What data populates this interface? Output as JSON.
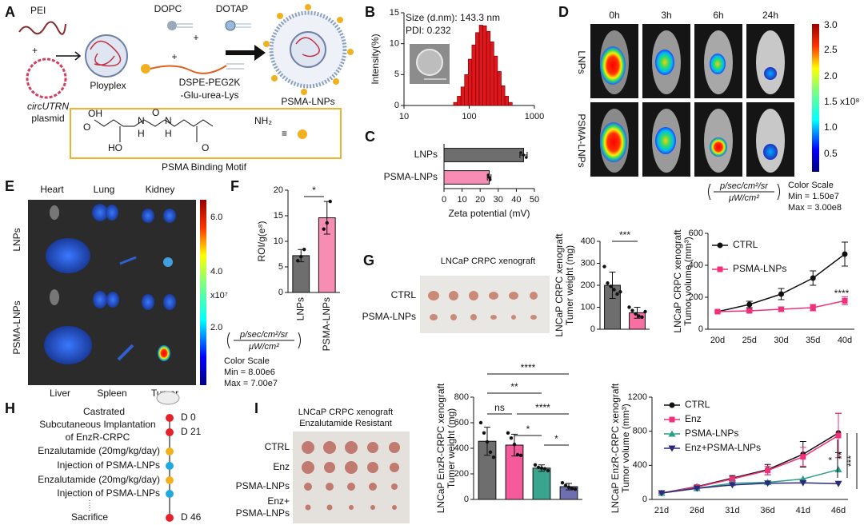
{
  "panel_labels": [
    "A",
    "B",
    "C",
    "D",
    "E",
    "F",
    "G",
    "H",
    "I"
  ],
  "panel_a": {
    "pei": "PEI",
    "plus": "+",
    "plasmid_name": "circUTRN",
    "plasmid": "plasmid",
    "polyplex": "Ployplex",
    "dopc": "DOPC",
    "dotap": "DOTAP",
    "dspe": [
      "DSPE-PEG2K",
      "-Glu-urea-Lys"
    ],
    "product": "PSMA-LNPs",
    "motif": "PSMA Binding Motif",
    "equiv": "≡",
    "atoms": [
      "OH",
      "O",
      "H",
      "H",
      "N",
      "N",
      "O",
      "HO",
      "O",
      "NH₂"
    ]
  },
  "panel_d": {
    "timepoints": [
      "0h",
      "3h",
      "6h",
      "24h"
    ],
    "rows": [
      "LNPs",
      "PSMA-LNPs"
    ],
    "colorbar_ticks": [
      "3.0",
      "2.5",
      "2.0",
      "1.5 x10⁸",
      "1.0",
      "0.5"
    ],
    "unit": [
      "p/sec/cm²/sr",
      "μW/cm²"
    ],
    "scale": [
      "Color Scale",
      "Min = 1.50e7",
      "Max = 3.00e8"
    ]
  },
  "panel_e": {
    "organs_top": [
      "Heart",
      "Lung",
      "Kidney"
    ],
    "organs_bottom": [
      "Liver",
      "Spleen",
      "Tumor"
    ],
    "rows": [
      "LNPs",
      "PSMA-LNPs"
    ],
    "colorbar_ticks": [
      "6.0",
      "4.0",
      "x10⁷",
      "2.0"
    ],
    "unit": [
      "p/sec/cm²/sr",
      "μW/cm²"
    ],
    "scale": [
      "Color Scale",
      "Min = 8.00e6",
      "Max = 7.00e7"
    ]
  },
  "panel_g": {
    "photo_title": "LNCaP CRPC xenograft",
    "rows": [
      "CTRL",
      "PSMA-LNPs"
    ]
  },
  "panel_h": {
    "header": [
      "Castrated",
      "Subcutaneous Implantation",
      "of EnzR-CRPC"
    ],
    "days": [
      "D 0",
      "D 21",
      "D 46"
    ],
    "treatments": [
      "Enzalutamide (20mg/kg/day)",
      "Injection of PSMA-LNPs",
      "Enzalutamide (20mg/kg/day)",
      "Injection of PSMA-LNPs"
    ],
    "end": "Sacrifice"
  },
  "panel_i": {
    "photo_title": [
      "LNCaP CRPC xenograft",
      "Enzalutamide Resistant"
    ],
    "rows": [
      "CTRL",
      "Enz",
      "PSMA-LNPs",
      "Enz+",
      "PSMA-LNPs"
    ]
  },
  "chart_data": [
    {
      "type": "histogram",
      "ylabel": "Intensity(%)",
      "annotations": [
        "Size (d.nm): 143.3 nm",
        "PDI: 0.232"
      ],
      "bins": [
        57.5,
        65.5,
        74.6,
        84.9,
        96.6,
        110,
        125.2,
        142.5,
        162.2,
        184.6,
        210.2,
        239.2,
        272.3,
        309.9,
        352.8,
        401.6,
        457.1
      ],
      "values": [
        0.5,
        1.5,
        3,
        5,
        7.5,
        9.8,
        11.8,
        13,
        12.9,
        12,
        10.3,
        8,
        5.5,
        3.2,
        1.5,
        0.5
      ],
      "color": "#e0161d",
      "xscale": "log",
      "xlim": [
        10,
        1000
      ],
      "xticks": [
        10,
        100,
        1000
      ],
      "ylim": [
        0,
        15
      ],
      "yticks": [
        0,
        5,
        10,
        15
      ]
    },
    {
      "type": "barh",
      "xlabel": "Zeta potential (mV)",
      "categories": [
        "LNPs",
        "PSMA-LNPs"
      ],
      "values": [
        44,
        25
      ],
      "errors": [
        2,
        1
      ],
      "points": [
        [
          42.5,
          44,
          45.5
        ],
        [
          24.5,
          25,
          25.5
        ]
      ],
      "colors": [
        "#6e6e6e",
        "#f78db3"
      ],
      "xlim": [
        0,
        50
      ],
      "xticks": [
        0,
        10,
        20,
        30,
        40,
        50
      ]
    },
    {
      "type": "bar",
      "ylabel": "ROI/g(e⁸)",
      "categories": [
        "LNPs",
        "PSMA-LNPs"
      ],
      "values": [
        7.2,
        14.6
      ],
      "errors": [
        1.2,
        3.2
      ],
      "points": [
        [
          6.2,
          7,
          8.4
        ],
        [
          12.4,
          13.6,
          17.8
        ]
      ],
      "colors": [
        "#6e6e6e",
        "#f78db3"
      ],
      "ylim": [
        0,
        20
      ],
      "yticks": [
        0,
        5,
        10,
        15,
        20
      ],
      "significance": [
        "*"
      ]
    },
    {
      "type": "bar",
      "ylabel": [
        "LNCaP CRPC xenograft",
        "Tumer weight (mg)"
      ],
      "values": [
        200,
        75
      ],
      "errors": [
        60,
        25
      ],
      "points": [
        [
          285,
          210,
          195,
          180,
          160,
          170
        ],
        [
          100,
          85,
          70,
          60,
          55,
          80
        ]
      ],
      "colors": [
        "#6e6e6e",
        "#f76fa3"
      ],
      "ylim": [
        0,
        400
      ],
      "yticks": [
        0,
        100,
        200,
        300,
        400
      ],
      "significance": [
        "***"
      ]
    },
    {
      "type": "line",
      "ylabel": [
        "LNCaP CRPC xenograft",
        "Tumor volume (mm³)"
      ],
      "categories": [
        "20d",
        "25d",
        "30d",
        "35d",
        "40d"
      ],
      "series": [
        {
          "name": "CTRL",
          "color": "#111111",
          "marker": "circle",
          "values": [
            110,
            155,
            220,
            320,
            470
          ],
          "errors": [
            5,
            20,
            35,
            45,
            75
          ]
        },
        {
          "name": "PSMA-LNPs",
          "color": "#f0307a",
          "marker": "square",
          "values": [
            110,
            115,
            125,
            135,
            178
          ],
          "errors": [
            5,
            8,
            15,
            20,
            25
          ]
        }
      ],
      "ylim": [
        0,
        600
      ],
      "yticks": [
        0,
        200,
        400,
        600
      ],
      "significance": [
        "****"
      ]
    },
    {
      "type": "bar",
      "ylabel": [
        "LNCaP EnzR-CRPC xenograft",
        "Tumer weight (mg)"
      ],
      "values": [
        455,
        425,
        245,
        100
      ],
      "errors": [
        110,
        85,
        25,
        25
      ],
      "points": [
        [
          600,
          520,
          450,
          370,
          330
        ],
        [
          520,
          480,
          430,
          350,
          345
        ],
        [
          270,
          250,
          245,
          240,
          225
        ],
        [
          130,
          110,
          95,
          85,
          80
        ]
      ],
      "colors": [
        "#6e6e6e",
        "#f55a9a",
        "#3aa58f",
        "#6f6fb0"
      ],
      "ylim": [
        0,
        800
      ],
      "yticks": [
        0,
        200,
        400,
        600,
        800
      ],
      "significance": [
        "****",
        "**",
        "ns",
        "****",
        "*",
        "*"
      ]
    },
    {
      "type": "line",
      "ylabel": [
        "LNCaP EnzR-CRPC xenograft",
        "Tumor volume (mm³)"
      ],
      "categories": [
        "21d",
        "26d",
        "31d",
        "36d",
        "41d",
        "46d"
      ],
      "series": [
        {
          "name": "CTRL",
          "color": "#111111",
          "marker": "circle",
          "values": [
            75,
            150,
            250,
            350,
            530,
            780
          ],
          "errors": [
            5,
            15,
            30,
            60,
            150,
            230
          ]
        },
        {
          "name": "Enz",
          "color": "#f0307a",
          "marker": "square",
          "values": [
            75,
            145,
            240,
            340,
            500,
            750
          ],
          "errors": [
            5,
            15,
            30,
            50,
            110,
            260
          ]
        },
        {
          "name": "PSMA-LNPs",
          "color": "#2aa08a",
          "marker": "triangle",
          "values": [
            75,
            130,
            190,
            200,
            240,
            350
          ]
        },
        {
          "name": "Enz+PSMA-LNPs",
          "color": "#2a2a7a",
          "marker": "triangle-down",
          "values": [
            75,
            130,
            170,
            190,
            195,
            185
          ]
        }
      ],
      "ylim": [
        0,
        1200
      ],
      "yticks": [
        0,
        400,
        800,
        1200
      ],
      "significance": [
        "*",
        "**",
        "***"
      ]
    }
  ]
}
